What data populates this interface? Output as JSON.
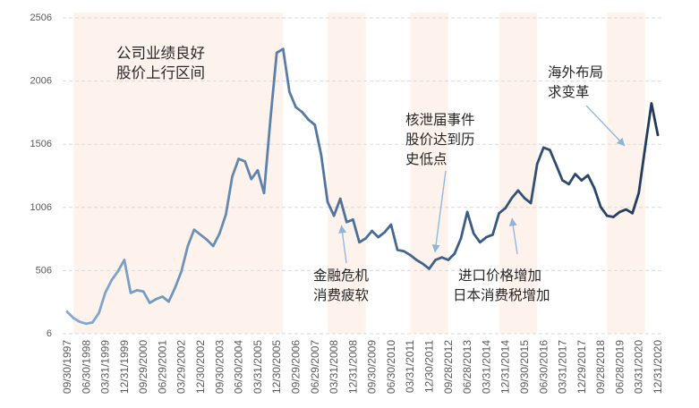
{
  "chart_data": {
    "type": "line",
    "ylim": [
      6,
      2506
    ],
    "y_ticks": [
      6,
      506,
      1006,
      1506,
      2006,
      2506
    ],
    "grid": true,
    "x_tick_labels": [
      "09/30/1997",
      "06/30/1998",
      "03/31/1999",
      "12/31/1999",
      "09/29/2000",
      "06/29/2001",
      "03/29/2002",
      "12/30/2002",
      "09/30/2003",
      "06/30/2004",
      "03/31/2005",
      "12/30/2005",
      "09/29/2006",
      "06/29/2007",
      "03/31/2008",
      "12/31/2008",
      "09/30/2009",
      "06/30/2010",
      "03/31/2011",
      "12/30/2011",
      "09/28/2012",
      "06/28/2013",
      "03/31/2014",
      "12/31/2014",
      "09/30/2015",
      "06/30/2016",
      "03/31/2017",
      "12/29/2017",
      "09/28/2018",
      "06/28/2019",
      "03/31/2020",
      "12/31/2020"
    ],
    "x": [
      "09/30/1997",
      "12/31/1997",
      "03/31/1998",
      "06/30/1998",
      "09/30/1998",
      "12/31/1998",
      "03/31/1999",
      "06/30/1999",
      "09/30/1999",
      "12/31/1999",
      "03/31/2000",
      "06/30/2000",
      "09/29/2000",
      "12/31/2000",
      "03/31/2001",
      "06/29/2001",
      "09/30/2001",
      "12/31/2001",
      "03/29/2002",
      "06/30/2002",
      "09/30/2002",
      "12/30/2002",
      "03/31/2003",
      "06/30/2003",
      "09/30/2003",
      "12/31/2003",
      "03/31/2004",
      "06/30/2004",
      "09/30/2004",
      "12/31/2004",
      "03/31/2005",
      "06/30/2005",
      "09/30/2005",
      "12/30/2005",
      "03/31/2006",
      "06/30/2006",
      "09/29/2006",
      "12/31/2006",
      "03/31/2007",
      "06/29/2007",
      "09/30/2007",
      "12/31/2007",
      "03/31/2008",
      "06/30/2008",
      "09/30/2008",
      "12/31/2008",
      "03/31/2009",
      "06/30/2009",
      "09/30/2009",
      "12/31/2009",
      "03/31/2010",
      "06/30/2010",
      "09/30/2010",
      "12/31/2010",
      "03/31/2011",
      "06/30/2011",
      "09/30/2011",
      "12/30/2011",
      "03/31/2012",
      "06/30/2012",
      "09/28/2012",
      "12/31/2012",
      "03/31/2013",
      "06/28/2013",
      "09/30/2013",
      "12/31/2013",
      "03/31/2014",
      "06/30/2014",
      "09/30/2014",
      "12/31/2014",
      "03/31/2015",
      "06/30/2015",
      "09/30/2015",
      "12/31/2015",
      "03/31/2016",
      "06/30/2016",
      "09/30/2016",
      "12/31/2016",
      "03/31/2017",
      "06/30/2017",
      "09/30/2017",
      "12/29/2017",
      "03/31/2018",
      "06/30/2018",
      "09/28/2018",
      "12/31/2018",
      "03/31/2019",
      "06/28/2019",
      "09/30/2019",
      "12/31/2019",
      "03/31/2020",
      "06/30/2020",
      "09/30/2020",
      "12/31/2020"
    ],
    "series": [
      {
        "values": [
          180,
          130,
          100,
          85,
          95,
          170,
          330,
          430,
          500,
          590,
          330,
          350,
          340,
          250,
          280,
          300,
          260,
          370,
          500,
          700,
          830,
          790,
          750,
          700,
          800,
          950,
          1250,
          1390,
          1370,
          1230,
          1300,
          1120,
          1700,
          2230,
          2260,
          1920,
          1800,
          1760,
          1700,
          1660,
          1420,
          1050,
          940,
          1075,
          890,
          910,
          730,
          760,
          820,
          770,
          810,
          870,
          670,
          660,
          630,
          590,
          560,
          520,
          590,
          610,
          590,
          640,
          760,
          970,
          800,
          730,
          770,
          790,
          960,
          1000,
          1080,
          1140,
          1080,
          1040,
          1350,
          1480,
          1460,
          1340,
          1220,
          1190,
          1270,
          1220,
          1260,
          1160,
          1010,
          940,
          930,
          970,
          990,
          960,
          1120,
          1480,
          1830,
          1580
        ]
      }
    ],
    "shaded_periods": [
      {
        "start": "12/31/1997",
        "end": "03/31/2006"
      },
      {
        "start": "12/31/2007",
        "end": "06/30/2009"
      },
      {
        "start": "03/31/2011",
        "end": "09/28/2012"
      },
      {
        "start": "09/30/2014",
        "end": "03/31/2016"
      },
      {
        "start": "12/31/2018",
        "end": "06/30/2020"
      }
    ],
    "annotations": [
      {
        "lines": [
          "公司业绩良好",
          "股价上行区间"
        ]
      },
      {
        "lines": [
          "金融危机",
          "消费疲软"
        ]
      },
      {
        "lines": [
          "核泄届事件",
          "股价达到历",
          "史低点"
        ]
      },
      {
        "lines": [
          "进口价格增加",
          "日本消费税增加"
        ]
      },
      {
        "lines": [
          "海外布局",
          "求变革"
        ]
      }
    ],
    "colors": {
      "line_start": "#86acd2",
      "line_mid": "#4f739b",
      "line_end": "#1f3a5e",
      "shade": "#fdf3ec",
      "grid": "#d9d9d9",
      "arrow": "#8db4dc"
    }
  }
}
